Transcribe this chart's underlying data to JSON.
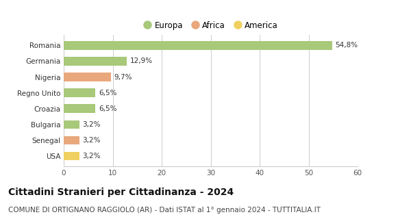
{
  "categories": [
    "Romania",
    "Germania",
    "Nigeria",
    "Regno Unito",
    "Croazia",
    "Bulgaria",
    "Senegal",
    "USA"
  ],
  "values": [
    54.8,
    12.9,
    9.7,
    6.5,
    6.5,
    3.2,
    3.2,
    3.2
  ],
  "labels": [
    "54,8%",
    "12,9%",
    "9,7%",
    "6,5%",
    "6,5%",
    "3,2%",
    "3,2%",
    "3,2%"
  ],
  "continents": [
    "Europa",
    "Europa",
    "Africa",
    "Europa",
    "Europa",
    "Europa",
    "Africa",
    "America"
  ],
  "colors": {
    "Europa": "#a8c87a",
    "Africa": "#e8a87c",
    "America": "#f0d060"
  },
  "legend_order": [
    "Europa",
    "Africa",
    "America"
  ],
  "xlim": [
    0,
    60
  ],
  "xticks": [
    0,
    10,
    20,
    30,
    40,
    50,
    60
  ],
  "title": "Cittadini Stranieri per Cittadinanza - 2024",
  "subtitle": "COMUNE DI ORTIGNANO RAGGIOLO (AR) - Dati ISTAT al 1° gennaio 2024 - TUTTITALIA.IT",
  "background_color": "#ffffff",
  "grid_color": "#cccccc",
  "title_fontsize": 10,
  "subtitle_fontsize": 7.5,
  "label_fontsize": 7.5,
  "tick_fontsize": 7.5,
  "legend_fontsize": 8.5,
  "bar_height": 0.55
}
